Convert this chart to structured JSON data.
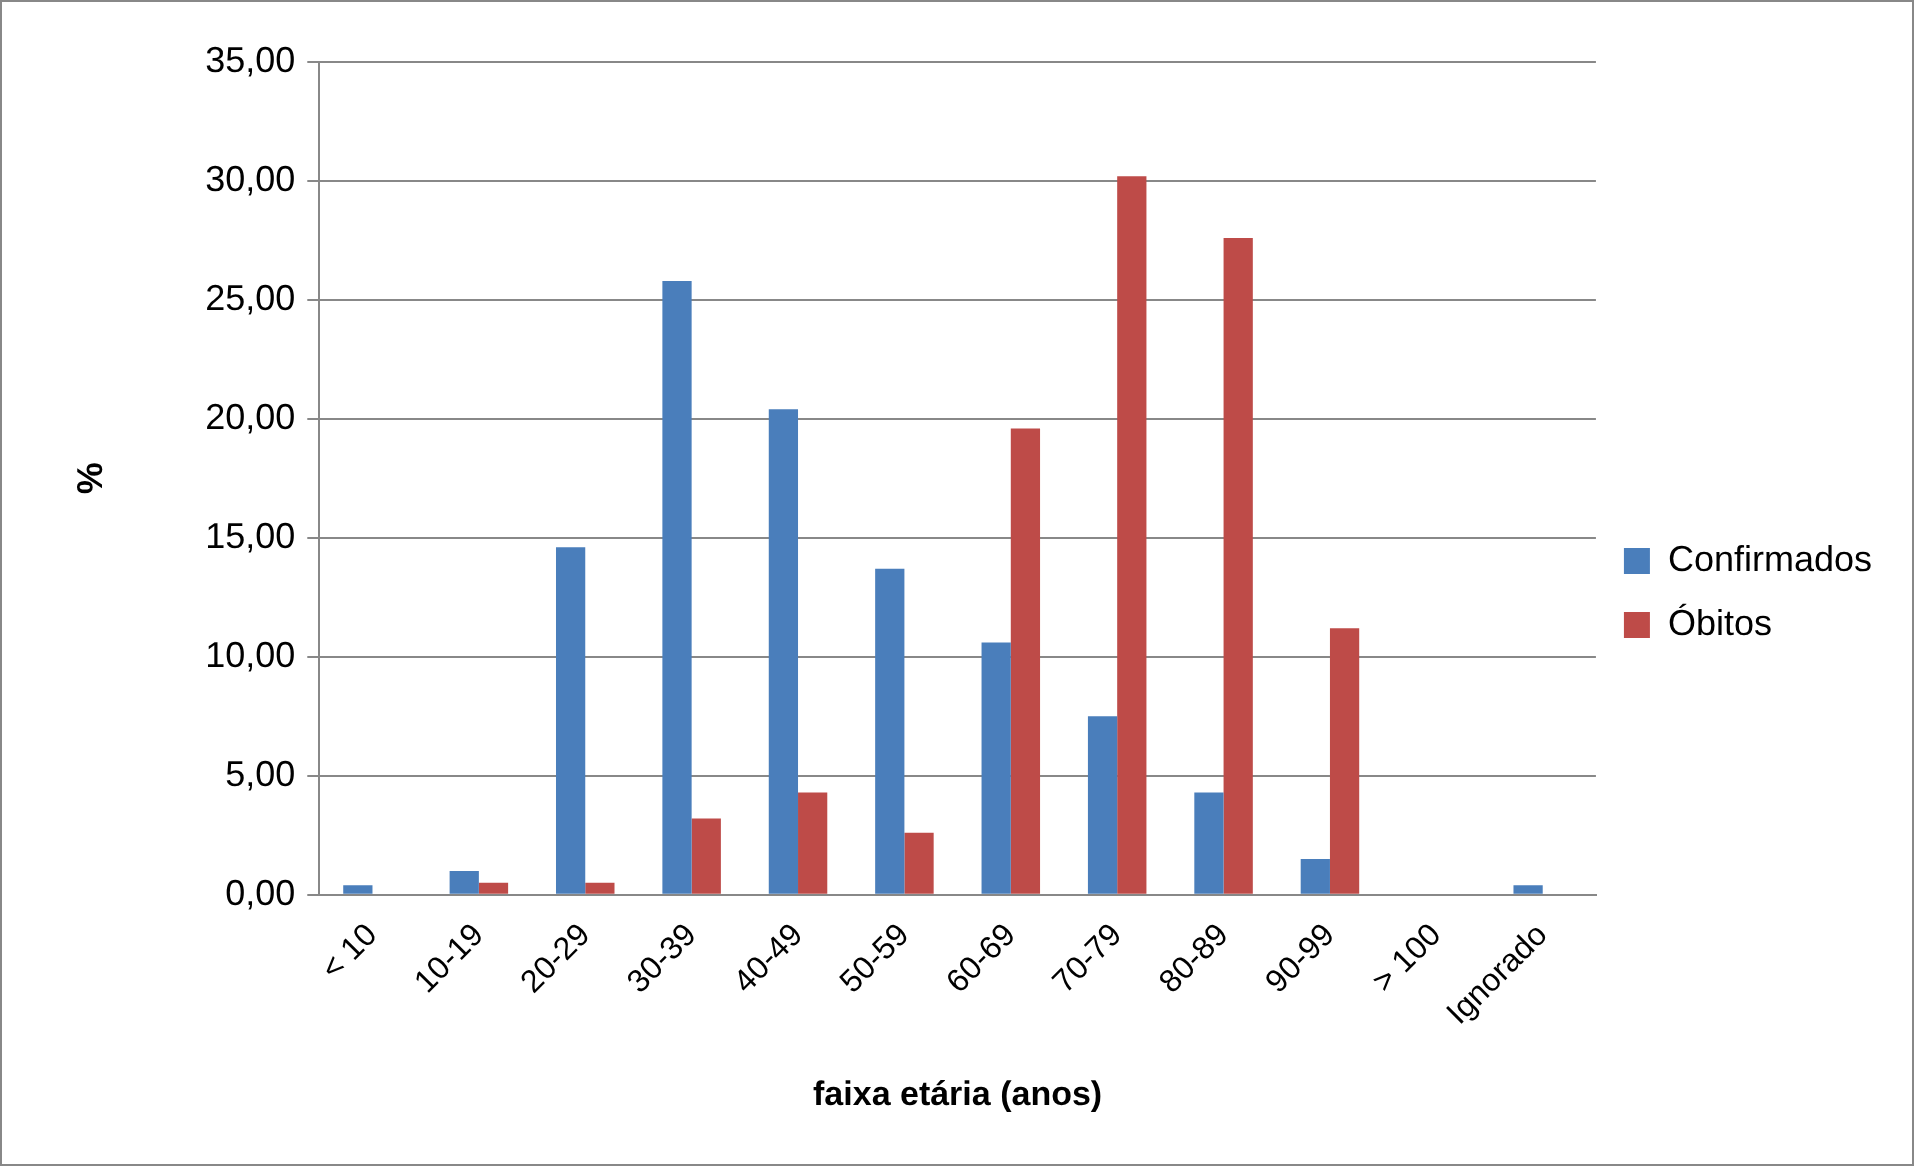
{
  "chart_data": {
    "type": "bar",
    "xlabel": "faixa etária (anos)",
    "ylabel": "%",
    "categories": [
      "< 10",
      "10-19",
      "20-29",
      "30-39",
      "40-49",
      "50-59",
      "60-69",
      "70-79",
      "80-89",
      "90-99",
      "> 100",
      "Ignorado"
    ],
    "series": [
      {
        "name": "Confirmados",
        "color": "#4a7ebb",
        "values": [
          0.4,
          1.0,
          14.6,
          25.8,
          20.4,
          13.7,
          10.6,
          7.5,
          4.3,
          1.5,
          0,
          0.4
        ]
      },
      {
        "name": "Óbitos",
        "color": "#be4b48",
        "values": [
          0,
          0.5,
          0.5,
          3.2,
          4.3,
          2.6,
          19.6,
          30.2,
          27.6,
          11.2,
          0,
          0
        ]
      }
    ],
    "ylim": [
      0,
      35
    ],
    "yticks": [
      {
        "value": 0,
        "label": "0,00"
      },
      {
        "value": 5,
        "label": "5,00"
      },
      {
        "value": 10,
        "label": "10,00"
      },
      {
        "value": 15,
        "label": "15,00"
      },
      {
        "value": 20,
        "label": "20,00"
      },
      {
        "value": 25,
        "label": "25,00"
      },
      {
        "value": 30,
        "label": "30,00"
      },
      {
        "value": 35,
        "label": "35,00"
      }
    ],
    "grid": "y",
    "legend": "right"
  }
}
